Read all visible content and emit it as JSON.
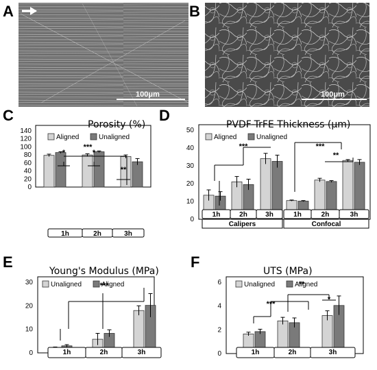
{
  "panels": {
    "A": {
      "label": "A",
      "scalebar": "100μm"
    },
    "B": {
      "label": "B",
      "scalebar": "100μm"
    },
    "C": {
      "label": "C"
    },
    "D": {
      "label": "D"
    },
    "E": {
      "label": "E"
    },
    "F": {
      "label": "F"
    }
  },
  "colors": {
    "light": "#d4d4d4",
    "dark": "#7a7a7a",
    "axis": "#000000"
  },
  "chart_data": [
    {
      "id": "C",
      "type": "bar",
      "title": "Porosity (%)",
      "categories": [
        "1h",
        "2h",
        "3h"
      ],
      "ylim": [
        0,
        140
      ],
      "yticks": [
        0,
        20,
        40,
        60,
        80,
        100,
        120,
        140
      ],
      "legend": [
        "Aligned",
        "Unaligned"
      ],
      "series": [
        {
          "name": "Aligned",
          "values": [
            79,
            80,
            76
          ],
          "errors": [
            3,
            3,
            4
          ]
        },
        {
          "name": "Unaligned",
          "values": [
            86,
            88,
            63
          ],
          "errors": [
            2,
            2,
            8
          ]
        }
      ],
      "annotations": [
        "*",
        "*",
        "***",
        "**"
      ]
    },
    {
      "id": "D",
      "type": "bar",
      "title": "PVDF-TrFE Thickness (μm)",
      "groups": [
        "Calipers",
        "Confocal"
      ],
      "categories": [
        "1h",
        "2h",
        "3h",
        "1h",
        "2h",
        "3h"
      ],
      "ylim": [
        0,
        50
      ],
      "yticks": [
        0,
        10,
        20,
        30,
        40,
        50
      ],
      "legend": [
        "Aligned",
        "Unaligned"
      ],
      "series": [
        {
          "name": "Aligned",
          "values": [
            13.5,
            21,
            34,
            10.5,
            22,
            33
          ],
          "errors": [
            3,
            3,
            3,
            0.3,
            1,
            0.5
          ]
        },
        {
          "name": "Unaligned",
          "values": [
            13,
            19.5,
            32.5,
            10.2,
            21.2,
            32
          ],
          "errors": [
            2.5,
            3,
            3.5,
            0.3,
            0.5,
            1.5
          ]
        }
      ],
      "annotations": [
        "***",
        "***",
        "**"
      ]
    },
    {
      "id": "E",
      "type": "bar",
      "title": "Young's Modulus (MPa)",
      "categories": [
        "1h",
        "2h",
        "3h"
      ],
      "ylim": [
        0,
        30
      ],
      "yticks": [
        0,
        10,
        20,
        30
      ],
      "legend": [
        "Unaligned",
        "Aligned"
      ],
      "series": [
        {
          "name": "Unaligned",
          "values": [
            2,
            5.8,
            18
          ],
          "errors": [
            0.5,
            2.5,
            2
          ]
        },
        {
          "name": "Aligned",
          "values": [
            3,
            8.3,
            20.2
          ],
          "errors": [
            0.5,
            1.5,
            5
          ]
        }
      ],
      "annotations": [
        "***"
      ]
    },
    {
      "id": "F",
      "type": "bar",
      "title": "UTS (MPa)",
      "categories": [
        "1h",
        "2h",
        "3h"
      ],
      "ylim": [
        0,
        6
      ],
      "yticks": [
        0,
        2,
        4,
        6
      ],
      "legend": [
        "Unaligned",
        "Aligned"
      ],
      "series": [
        {
          "name": "Unaligned",
          "values": [
            1.65,
            2.75,
            3.2
          ],
          "errors": [
            0.15,
            0.3,
            0.4
          ]
        },
        {
          "name": "Aligned",
          "values": [
            1.85,
            2.6,
            4.05
          ],
          "errors": [
            0.2,
            0.4,
            0.8
          ]
        }
      ],
      "annotations": [
        "***",
        "**",
        "*"
      ]
    }
  ]
}
